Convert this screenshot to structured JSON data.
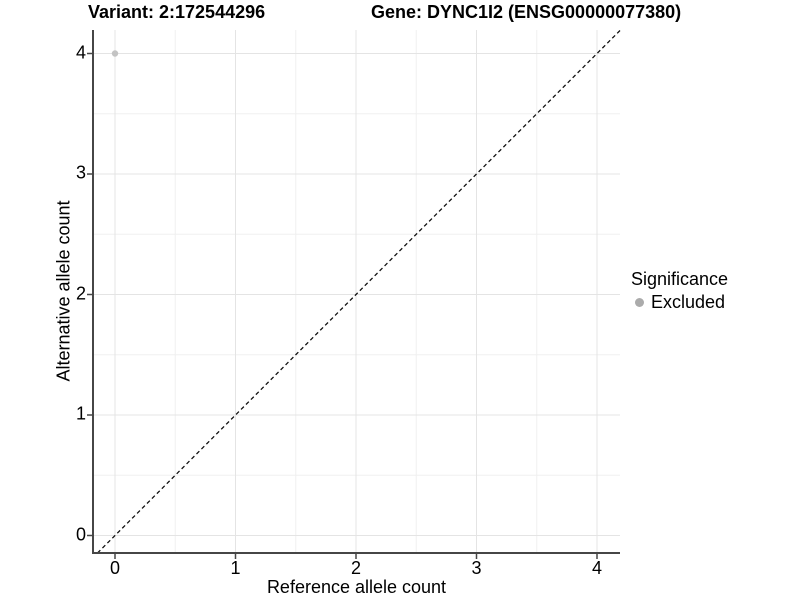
{
  "chart_data": {
    "type": "scatter",
    "titles": {
      "left": "Variant: 2:172544296",
      "right": "Gene: DYNC1I2 (ENSG00000077380)"
    },
    "xlabel": "Reference allele count",
    "ylabel": "Alternative allele count",
    "xlim": [
      -0.18,
      4.19
    ],
    "ylim": [
      -0.19,
      4.19
    ],
    "x_ticks": [
      0,
      1,
      2,
      3,
      4
    ],
    "y_ticks": [
      0,
      1,
      2,
      3,
      4
    ],
    "x_minor_ticks": [
      0.5,
      1.5,
      2.5,
      3.5
    ],
    "y_minor_ticks": [
      0.5,
      1.5,
      2.5,
      3.5
    ],
    "grid": {
      "major_color": "#e4e4e4",
      "minor_color": "#f0f0f0",
      "on": true
    },
    "axis_color": "#464646",
    "points": [
      {
        "x": 0,
        "y": 4,
        "significance": "Excluded",
        "color": "#c3c3c3",
        "radius": 3.2
      }
    ],
    "identity_line": {
      "slope": 1,
      "intercept": 0,
      "style": "dashed",
      "color": "#111111",
      "description": "y = x reference diagonal"
    },
    "legend": {
      "title": "Significance",
      "position": "right",
      "items": [
        {
          "label": "Excluded",
          "color": "#ababab"
        }
      ]
    }
  }
}
